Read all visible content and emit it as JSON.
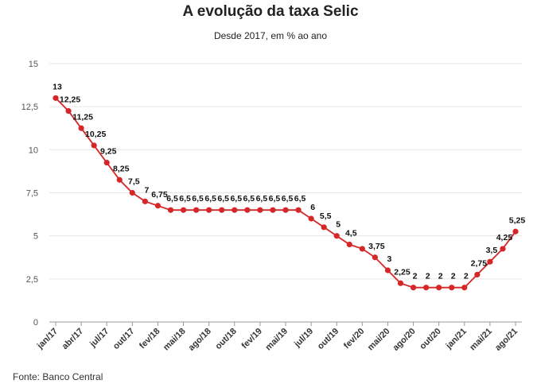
{
  "title": "A evolução da taxa Selic",
  "subtitle": "Desde 2017, em % ao ano",
  "source": "Fonte: Banco Central",
  "colors": {
    "line": "#d62728",
    "grid": "#e6e6e6"
  },
  "chart_data": {
    "type": "line",
    "title": "A evolução da taxa Selic",
    "subtitle": "Desde 2017, em % ao ano",
    "xlabel": "",
    "ylabel": "",
    "ylim": [
      0,
      15
    ],
    "yticks": [
      0,
      2.5,
      5,
      7.5,
      10,
      12.5,
      15
    ],
    "ytick_labels": [
      "0",
      "2,5",
      "5",
      "7,5",
      "10",
      "12,5",
      "15"
    ],
    "xtick_labels": [
      "jan/17",
      "abr/17",
      "jul/17",
      "out/17",
      "fev/18",
      "mai/18",
      "ago/18",
      "out/18",
      "fev/19",
      "mai/19",
      "jul/19",
      "out/19",
      "fev/20",
      "mai/20",
      "ago/20",
      "out/20",
      "jan/21",
      "mai/21",
      "ago/21"
    ],
    "grid": true,
    "legend": "none",
    "series": [
      {
        "values": [
          13,
          12.25,
          11.25,
          10.25,
          9.25,
          8.25,
          7.5,
          7,
          6.75,
          6.5,
          6.5,
          6.5,
          6.5,
          6.5,
          6.5,
          6.5,
          6.5,
          6.5,
          6.5,
          6.5,
          6,
          5.5,
          5,
          4.5,
          4.25,
          3.75,
          3,
          2.25,
          2,
          2,
          2,
          2,
          2,
          2.75,
          3.5,
          4.25,
          5.25
        ],
        "labels": [
          "13",
          "12,25",
          "11,25",
          "10,25",
          "9,25",
          "8,25",
          "7,5",
          "7",
          "6,75",
          "6,5",
          "6,5",
          "6,5",
          "6,5",
          "6,5",
          "6,5",
          "6,5",
          "6,5",
          "6,5",
          "6,5",
          "6,5",
          "6",
          "5,5",
          "5",
          "4,5",
          "",
          "3,75",
          "3",
          "2,25",
          "2",
          "2",
          "2",
          "2",
          "2",
          "2,75",
          "3,5",
          "4,25",
          "5,25"
        ]
      }
    ]
  }
}
